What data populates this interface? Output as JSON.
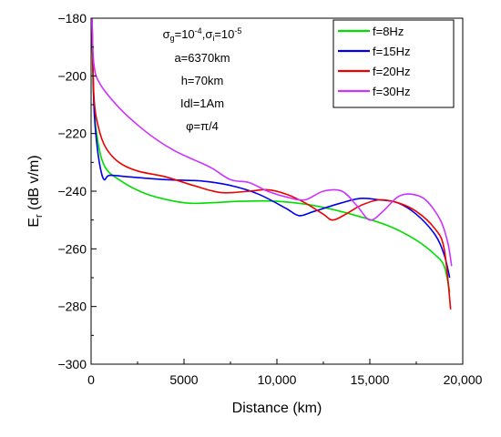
{
  "chart_data": {
    "type": "line",
    "xlabel": "Distance (km)",
    "ylabel_main": "E",
    "ylabel_sub": "r",
    "ylabel_rest": " (dB  v/m)",
    "xlim": [
      0,
      20000
    ],
    "ylim": [
      -300,
      -180
    ],
    "x_ticks": [
      0,
      5000,
      10000,
      15000,
      20000
    ],
    "x_tick_labels": [
      "0",
      "5000",
      "10,000",
      "15,000",
      "20,000"
    ],
    "y_ticks": [
      -180,
      -200,
      -220,
      -240,
      -260,
      -280,
      -300
    ],
    "y_tick_labels": [
      "−180",
      "−200",
      "−220",
      "−240",
      "−260",
      "−280",
      "−300"
    ],
    "grid": false,
    "legend_position": "top-right",
    "annotations": {
      "sigma_line": {
        "a_base": "σ",
        "a_sub": "g",
        "a_eq": "=10",
        "a_exp": "-4",
        "sep": ",",
        "b_base": "σ",
        "b_sub": "i",
        "b_eq": "=10",
        "b_exp": "-5"
      },
      "lines": [
        "a=6370km",
        "h=70km",
        "Idl=1Am",
        "φ=π/4"
      ]
    },
    "series": [
      {
        "name": "f=8Hz",
        "color": "#00dd00",
        "points": [
          [
            50,
            -180
          ],
          [
            120,
            -205
          ],
          [
            300,
            -220
          ],
          [
            700,
            -231
          ],
          [
            1500,
            -236
          ],
          [
            3000,
            -241
          ],
          [
            5000,
            -244
          ],
          [
            6500,
            -244
          ],
          [
            8000,
            -243.5
          ],
          [
            10000,
            -243.5
          ],
          [
            12000,
            -245
          ],
          [
            14000,
            -248
          ],
          [
            16000,
            -252
          ],
          [
            17500,
            -257
          ],
          [
            18500,
            -262
          ],
          [
            19000,
            -266
          ],
          [
            19300,
            -275
          ]
        ]
      },
      {
        "name": "f=15Hz",
        "color": "#0000ee",
        "points": [
          [
            50,
            -180
          ],
          [
            150,
            -210
          ],
          [
            300,
            -223
          ],
          [
            500,
            -232
          ],
          [
            700,
            -236
          ],
          [
            1000,
            -234.5
          ],
          [
            2000,
            -235
          ],
          [
            4000,
            -236
          ],
          [
            6000,
            -236.5
          ],
          [
            7500,
            -238
          ],
          [
            9000,
            -241
          ],
          [
            10500,
            -246
          ],
          [
            11200,
            -248.5
          ],
          [
            12000,
            -247
          ],
          [
            13500,
            -244
          ],
          [
            14500,
            -242.5
          ],
          [
            15500,
            -243
          ],
          [
            16500,
            -244
          ],
          [
            17500,
            -248
          ],
          [
            18500,
            -255
          ],
          [
            19000,
            -262
          ],
          [
            19300,
            -270
          ]
        ]
      },
      {
        "name": "f=20Hz",
        "color": "#ee0000",
        "points": [
          [
            50,
            -180
          ],
          [
            150,
            -207
          ],
          [
            400,
            -218
          ],
          [
            800,
            -225
          ],
          [
            1500,
            -230
          ],
          [
            2500,
            -233
          ],
          [
            4000,
            -235
          ],
          [
            5500,
            -238
          ],
          [
            7000,
            -240.5
          ],
          [
            8500,
            -240
          ],
          [
            9500,
            -239.5
          ],
          [
            10500,
            -241
          ],
          [
            11500,
            -244
          ],
          [
            12500,
            -248
          ],
          [
            13000,
            -250
          ],
          [
            13700,
            -248
          ],
          [
            14500,
            -245
          ],
          [
            15500,
            -243
          ],
          [
            16500,
            -244
          ],
          [
            17500,
            -247
          ],
          [
            18500,
            -253
          ],
          [
            19000,
            -260
          ],
          [
            19350,
            -281
          ]
        ]
      },
      {
        "name": "f=30Hz",
        "color": "#cc33ff",
        "points": [
          [
            50,
            -180
          ],
          [
            150,
            -196
          ],
          [
            500,
            -203
          ],
          [
            1500,
            -211
          ],
          [
            2500,
            -217
          ],
          [
            3500,
            -222
          ],
          [
            4500,
            -226
          ],
          [
            5500,
            -229
          ],
          [
            6500,
            -232
          ],
          [
            7500,
            -236
          ],
          [
            8500,
            -237
          ],
          [
            9500,
            -240
          ],
          [
            10500,
            -242
          ],
          [
            11500,
            -243
          ],
          [
            12500,
            -240
          ],
          [
            13500,
            -240
          ],
          [
            14300,
            -245
          ],
          [
            15000,
            -250
          ],
          [
            15700,
            -247
          ],
          [
            16500,
            -242
          ],
          [
            17200,
            -241
          ],
          [
            18000,
            -243
          ],
          [
            18800,
            -250
          ],
          [
            19200,
            -258
          ],
          [
            19400,
            -266
          ]
        ]
      }
    ]
  }
}
